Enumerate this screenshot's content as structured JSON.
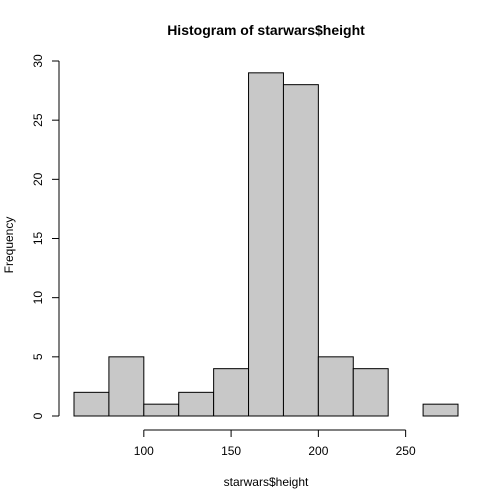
{
  "chart_data": {
    "type": "bar",
    "title": "Histogram of starwars$height",
    "xlabel": "starwars$height",
    "ylabel": "Frequency",
    "bin_edges": [
      60,
      80,
      100,
      120,
      140,
      160,
      180,
      200,
      220,
      240,
      260,
      280
    ],
    "values": [
      2,
      5,
      1,
      2,
      4,
      29,
      28,
      5,
      4,
      0,
      1
    ],
    "xlim": [
      60,
      280
    ],
    "ylim": [
      0,
      30
    ],
    "x_ticks": [
      100,
      150,
      200,
      250
    ],
    "y_ticks": [
      0,
      5,
      10,
      15,
      20,
      25,
      30
    ],
    "bar_fill": "#c8c8c8",
    "grid": false
  }
}
